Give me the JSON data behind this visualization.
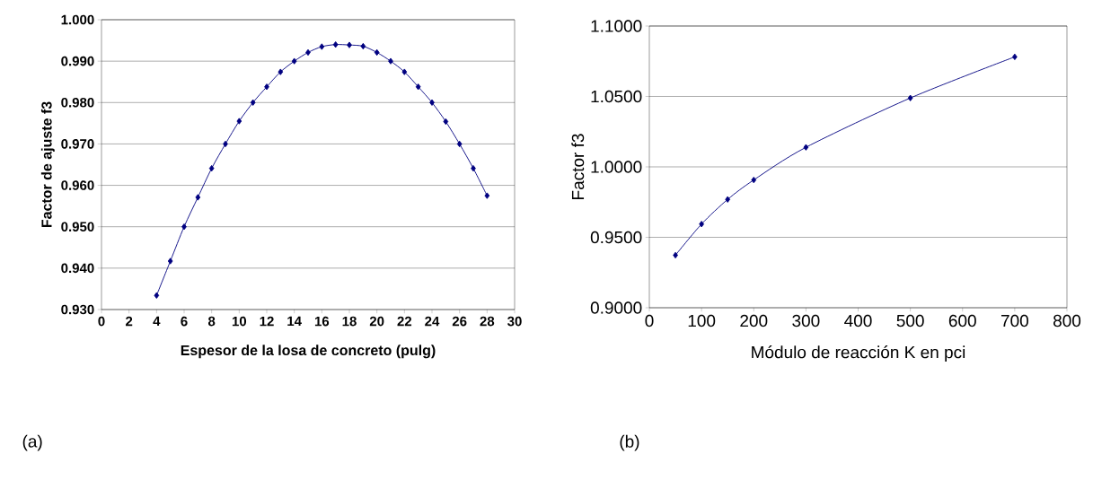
{
  "chart_data": [
    {
      "type": "line",
      "xlabel": "Espesor de la losa de concreto (pulg)",
      "ylabel": "Factor de ajuste f3",
      "annotations": [
        "(a)"
      ],
      "x": [
        4,
        5,
        6,
        7,
        8,
        9,
        10,
        11,
        12,
        13,
        14,
        15,
        16,
        17,
        18,
        19,
        20,
        21,
        22,
        23,
        24,
        25,
        26,
        27,
        28
      ],
      "series": [
        {
          "color": "#000080",
          "values": [
            0.9334,
            0.9417,
            0.95,
            0.9571,
            0.9641,
            0.97,
            0.9755,
            0.98,
            0.9838,
            0.9874,
            0.99,
            0.9921,
            0.9935,
            0.994,
            0.9939,
            0.9936,
            0.9921,
            0.99,
            0.9874,
            0.9838,
            0.98,
            0.9754,
            0.97,
            0.9641,
            0.9575
          ]
        }
      ],
      "xlim": [
        0,
        30
      ],
      "xticks": [
        0,
        2,
        4,
        6,
        8,
        10,
        12,
        14,
        16,
        18,
        20,
        22,
        24,
        26,
        28,
        30
      ],
      "ylim": [
        0.93,
        1.0
      ],
      "yticks": [
        {
          "value": 0.93,
          "label": "0.930"
        },
        {
          "value": 0.94,
          "label": "0.940"
        },
        {
          "value": 0.95,
          "label": "0.950"
        },
        {
          "value": 0.96,
          "label": "0.960"
        },
        {
          "value": 0.97,
          "label": "0.970"
        },
        {
          "value": 0.98,
          "label": "0.980"
        },
        {
          "value": 0.99,
          "label": "0.990"
        },
        {
          "value": 1.0,
          "label": "1.000"
        }
      ],
      "grid": "y",
      "marker": "diamond",
      "line_style": "solid"
    },
    {
      "type": "line",
      "xlabel": "Módulo de reacción K en pci",
      "ylabel": "Factor f3",
      "annotations": [
        "(b)"
      ],
      "x": [
        50,
        100,
        150,
        200,
        300,
        500,
        700
      ],
      "series": [
        {
          "color": "#000080",
          "values": [
            0.9373,
            0.9594,
            0.9769,
            0.9907,
            1.0139,
            1.0489,
            1.0781
          ]
        }
      ],
      "xlim": [
        0,
        800
      ],
      "xticks": [
        0,
        100,
        200,
        300,
        400,
        500,
        600,
        700,
        800
      ],
      "ylim": [
        0.9,
        1.1
      ],
      "yticks": [
        {
          "value": 0.9,
          "label": "0.9000"
        },
        {
          "value": 0.95,
          "label": "0.9500"
        },
        {
          "value": 1.0,
          "label": "1.0000"
        },
        {
          "value": 1.05,
          "label": "1.0500"
        },
        {
          "value": 1.1,
          "label": "1.1000"
        }
      ],
      "grid": "y",
      "marker": "diamond",
      "line_style": "solid"
    }
  ]
}
